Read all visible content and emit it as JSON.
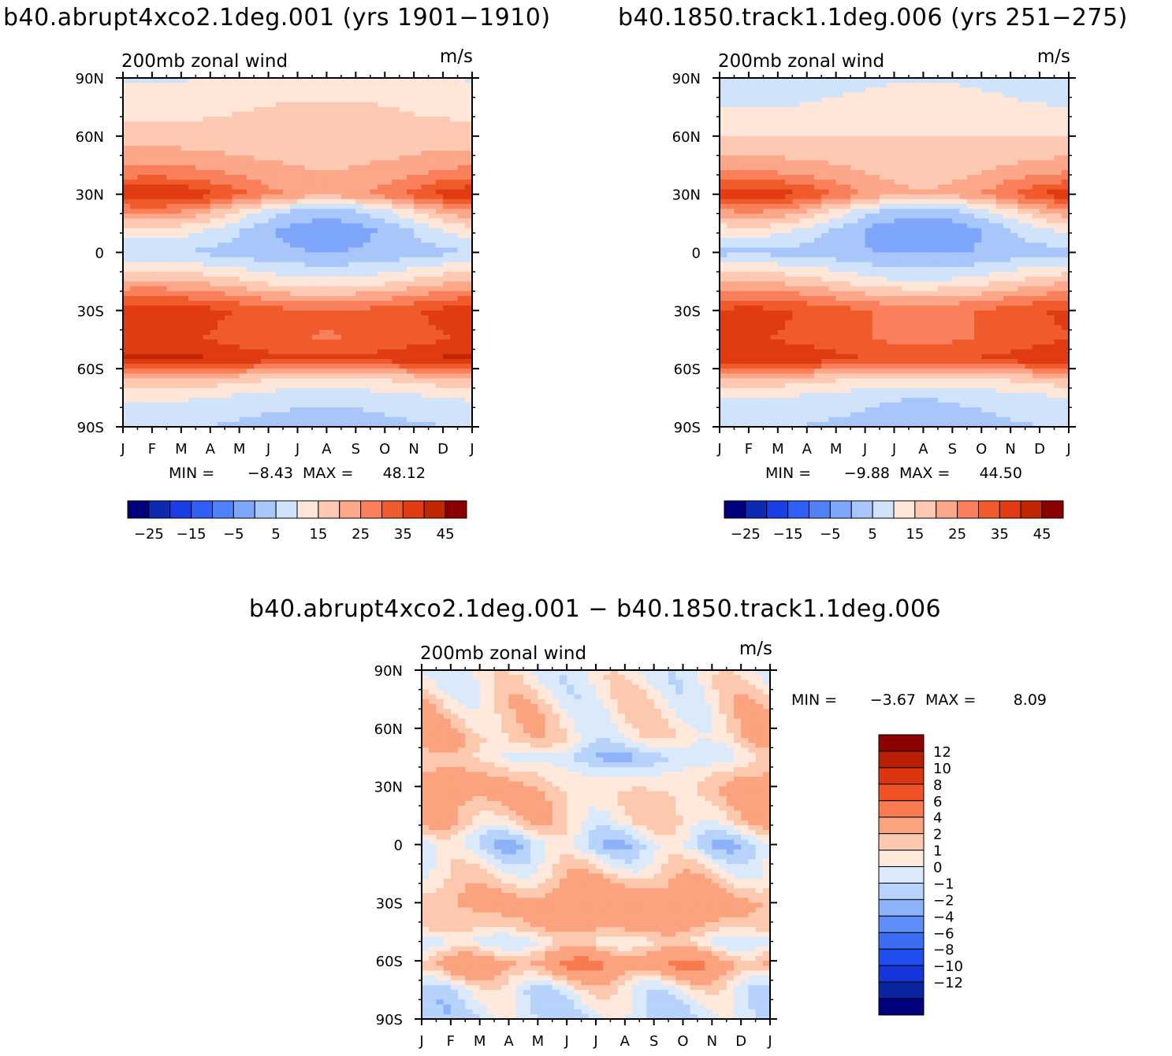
{
  "figure": {
    "top_left_title": "b40.abrupt4xco2.1deg.001 (yrs 1901−1910)",
    "top_right_title": "b40.1850.track1.1deg.006 (yrs 251−275)",
    "bottom_title": "b40.abrupt4xco2.1deg.001 − b40.1850.track1.1deg.006"
  },
  "chart_data": [
    {
      "id": "case1",
      "type": "heatmap",
      "title": "b40.abrupt4xco2.1deg.001 (yrs 1901−1910)",
      "subtitle": "200mb zonal wind",
      "units": "m/s",
      "x_ticks": [
        "J",
        "F",
        "M",
        "A",
        "M",
        "J",
        "J",
        "A",
        "S",
        "O",
        "N",
        "D",
        "J"
      ],
      "y_ticks": [
        "90N",
        "60N",
        "30N",
        "0",
        "30S",
        "60S",
        "90S"
      ],
      "ylim": [
        -90,
        90
      ],
      "min_label": "MIN =",
      "min_value": "−8.43",
      "max_label": "MAX =",
      "max_value": "48.12",
      "levels": [
        -30,
        -25,
        -20,
        -15,
        -10,
        -5,
        0,
        5,
        10,
        15,
        20,
        25,
        30,
        35,
        40,
        45
      ],
      "colorbar_labels": [
        "−25",
        "−15",
        "−5",
        "5",
        "15",
        "25",
        "35",
        "45"
      ],
      "colors": [
        "#00007f",
        "#0d2ab3",
        "#1a3ee3",
        "#2f5ff5",
        "#4f82f7",
        "#7ea6fa",
        "#a9c6fb",
        "#d0e3fb",
        "#fee6d8",
        "#fdc9b3",
        "#fca789",
        "#f9805b",
        "#f05b2c",
        "#e03b12",
        "#c22704",
        "#8b0000"
      ],
      "model": {
        "base": [
          [
            -90,
            0
          ],
          [
            -75,
            5
          ],
          [
            -65,
            14
          ],
          [
            -55,
            36
          ],
          [
            -45,
            30
          ],
          [
            -30,
            32
          ],
          [
            -15,
            14
          ],
          [
            0,
            -1
          ],
          [
            12,
            6
          ],
          [
            22,
            18
          ],
          [
            30,
            33
          ],
          [
            40,
            22
          ],
          [
            50,
            16
          ],
          [
            65,
            11
          ],
          [
            80,
            7
          ],
          [
            90,
            5
          ]
        ],
        "season": [
          [
            -90,
            -2
          ],
          [
            -60,
            -4
          ],
          [
            -45,
            -4
          ],
          [
            -30,
            -5
          ],
          [
            -15,
            -6
          ],
          [
            0,
            -3
          ],
          [
            12,
            -11
          ],
          [
            22,
            -15
          ],
          [
            30,
            -12
          ],
          [
            40,
            -5
          ],
          [
            50,
            -2
          ],
          [
            60,
            0
          ],
          [
            75,
            2
          ],
          [
            90,
            2
          ]
        ]
      }
    },
    {
      "id": "case2",
      "type": "heatmap",
      "title": "b40.1850.track1.1deg.006 (yrs 251−275)",
      "subtitle": "200mb zonal wind",
      "units": "m/s",
      "x_ticks": [
        "J",
        "F",
        "M",
        "A",
        "M",
        "J",
        "J",
        "A",
        "S",
        "O",
        "N",
        "D",
        "J"
      ],
      "y_ticks": [
        "90N",
        "60N",
        "30N",
        "0",
        "30S",
        "60S",
        "90S"
      ],
      "ylim": [
        -90,
        90
      ],
      "min_label": "MIN =",
      "min_value": "−9.88",
      "max_label": "MAX =",
      "max_value": "44.50",
      "levels": [
        -30,
        -25,
        -20,
        -15,
        -10,
        -5,
        0,
        5,
        10,
        15,
        20,
        25,
        30,
        35,
        40,
        45
      ],
      "colorbar_labels": [
        "−25",
        "−15",
        "−5",
        "5",
        "15",
        "25",
        "35",
        "45"
      ],
      "colors": [
        "#00007f",
        "#0d2ab3",
        "#1a3ee3",
        "#2f5ff5",
        "#4f82f7",
        "#7ea6fa",
        "#a9c6fb",
        "#d0e3fb",
        "#fee6d8",
        "#fdc9b3",
        "#fca789",
        "#f9805b",
        "#f05b2c",
        "#e03b12",
        "#c22704",
        "#8b0000"
      ],
      "model": {
        "base": [
          [
            -90,
            0
          ],
          [
            -75,
            4
          ],
          [
            -65,
            13
          ],
          [
            -55,
            34
          ],
          [
            -45,
            29
          ],
          [
            -30,
            30
          ],
          [
            -15,
            13
          ],
          [
            0,
            -2
          ],
          [
            12,
            5
          ],
          [
            22,
            17
          ],
          [
            30,
            31
          ],
          [
            40,
            20
          ],
          [
            50,
            14
          ],
          [
            65,
            8
          ],
          [
            80,
            4
          ],
          [
            90,
            2
          ]
        ],
        "season": [
          [
            -90,
            -2
          ],
          [
            -60,
            -4
          ],
          [
            -45,
            -4
          ],
          [
            -30,
            -5
          ],
          [
            -15,
            -6
          ],
          [
            0,
            -3
          ],
          [
            12,
            -11
          ],
          [
            22,
            -15
          ],
          [
            30,
            -12
          ],
          [
            40,
            -5
          ],
          [
            50,
            -2
          ],
          [
            60,
            0
          ],
          [
            75,
            2
          ],
          [
            90,
            2
          ]
        ]
      }
    },
    {
      "id": "diff",
      "type": "heatmap",
      "title": "b40.abrupt4xco2.1deg.001 − b40.1850.track1.1deg.006",
      "subtitle": "200mb zonal wind",
      "units": "m/s",
      "x_ticks": [
        "J",
        "F",
        "M",
        "A",
        "M",
        "J",
        "J",
        "A",
        "S",
        "O",
        "N",
        "D",
        "J"
      ],
      "y_ticks": [
        "90N",
        "60N",
        "30N",
        "0",
        "30S",
        "60S",
        "90S"
      ],
      "ylim": [
        -90,
        90
      ],
      "min_label": "MIN =",
      "min_value": "−3.67",
      "max_label": "MAX =",
      "max_value": "8.09",
      "levels": [
        -14,
        -12,
        -10,
        -8,
        -6,
        -4,
        -2,
        -1,
        0,
        1,
        2,
        4,
        6,
        8,
        10,
        12,
        14
      ],
      "colorbar_labels": [
        "12",
        "10",
        "8",
        "6",
        "4",
        "2",
        "1",
        "0",
        "−1",
        "−2",
        "−4",
        "−6",
        "−8",
        "−10",
        "−12"
      ],
      "colors": [
        "#00007f",
        "#0b24a0",
        "#1436d8",
        "#1f4ef0",
        "#3a6df4",
        "#5e8ff7",
        "#8cb3fa",
        "#b7d2fb",
        "#daeafb",
        "#fee9dc",
        "#fcc9ae",
        "#fba27f",
        "#f77b4f",
        "#f05325",
        "#dd3510",
        "#b81f05",
        "#8b0000"
      ],
      "model": {
        "base": [
          [
            -90,
            -1
          ],
          [
            -75,
            -0.4
          ],
          [
            -62,
            3
          ],
          [
            -50,
            -0.5
          ],
          [
            -42,
            1.5
          ],
          [
            -30,
            2.5
          ],
          [
            -15,
            0.7
          ],
          [
            0,
            -1.2
          ],
          [
            12,
            1.5
          ],
          [
            25,
            2.5
          ],
          [
            35,
            2
          ],
          [
            45,
            0.5
          ],
          [
            55,
            1.8
          ],
          [
            70,
            1.2
          ],
          [
            85,
            0.3
          ],
          [
            90,
            0
          ]
        ],
        "season": [
          [
            -90,
            0
          ],
          [
            -55,
            1
          ],
          [
            -30,
            1
          ],
          [
            0,
            0
          ],
          [
            20,
            -1
          ],
          [
            45,
            -2
          ],
          [
            60,
            -1
          ],
          [
            90,
            0
          ]
        ]
      }
    }
  ]
}
